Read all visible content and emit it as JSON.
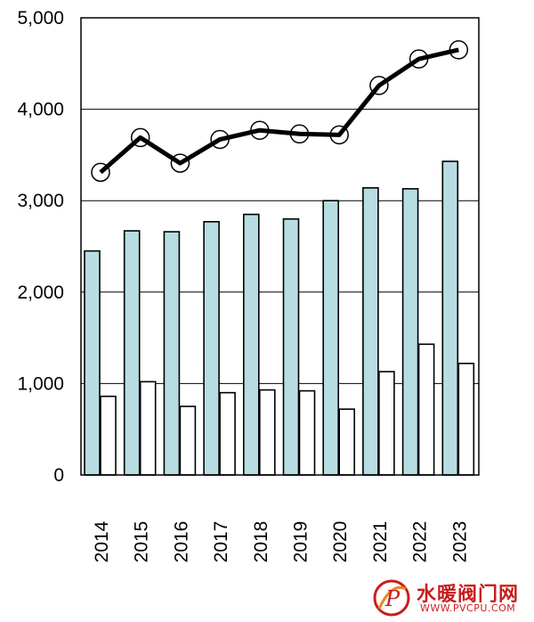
{
  "chart_data": {
    "type": "bar",
    "categories": [
      "2014",
      "2015",
      "2016",
      "2017",
      "2018",
      "2019",
      "2020",
      "2021",
      "2022",
      "2023"
    ],
    "series": [
      {
        "kind": "bar",
        "color": "#b7dde3",
        "values": [
          2450,
          2670,
          2660,
          2770,
          2850,
          2800,
          3000,
          3140,
          3130,
          3430
        ]
      },
      {
        "kind": "bar",
        "color": "#ffffff",
        "values": [
          860,
          1020,
          750,
          900,
          930,
          920,
          720,
          1130,
          1430,
          1220
        ]
      },
      {
        "kind": "line",
        "color": "#000000",
        "values": [
          3310,
          3690,
          3410,
          3670,
          3770,
          3730,
          3720,
          4260,
          4550,
          4650
        ]
      }
    ],
    "yticks": [
      "0",
      "1,000",
      "2,000",
      "3,000",
      "4,000",
      "5,000"
    ],
    "ylim": [
      0,
      5000
    ],
    "grid": true,
    "legend": "none",
    "title": "",
    "xlabel": "",
    "ylabel": ""
  },
  "watermark": {
    "text": "水暖阀门网",
    "url": "WWW.PVCPU.COM",
    "logo_letter": "P"
  }
}
